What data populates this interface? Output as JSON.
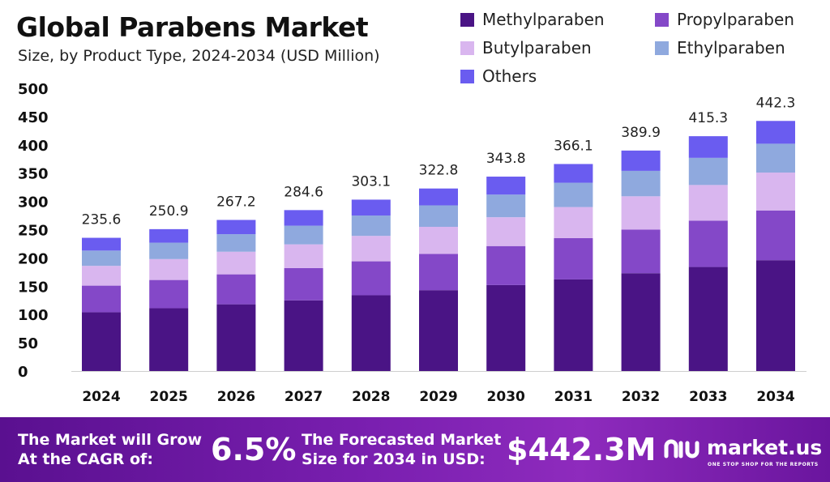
{
  "header": {
    "title": "Global Parabens Market",
    "subtitle": "Size, by Product Type, 2024-2034 (USD Million)"
  },
  "legend": [
    {
      "name": "Methylparaben",
      "color": "#4a1485"
    },
    {
      "name": "Propylparaben",
      "color": "#8448c8"
    },
    {
      "name": "Butylparaben",
      "color": "#d9b6ef"
    },
    {
      "name": "Ethylparaben",
      "color": "#8fa9de"
    },
    {
      "name": "Others",
      "color": "#6a5cf0"
    }
  ],
  "chart_data": {
    "type": "bar",
    "stacked": true,
    "categories": [
      "2024",
      "2025",
      "2026",
      "2027",
      "2028",
      "2029",
      "2030",
      "2031",
      "2032",
      "2033",
      "2034"
    ],
    "totals": [
      235.6,
      250.9,
      267.2,
      284.6,
      303.1,
      322.8,
      343.8,
      366.1,
      389.9,
      415.3,
      442.3
    ],
    "series": [
      {
        "name": "Methylparaben",
        "values": [
          104,
          111,
          118,
          125,
          134,
          143,
          152,
          162,
          173,
          184,
          196
        ]
      },
      {
        "name": "Propylparaben",
        "values": [
          47,
          50,
          53,
          57,
          60,
          64,
          69,
          73,
          77,
          82,
          88
        ]
      },
      {
        "name": "Butylparaben",
        "values": [
          35,
          37,
          40,
          42,
          45,
          48,
          51,
          55,
          59,
          63,
          67
        ]
      },
      {
        "name": "Ethylparaben",
        "values": [
          27,
          29,
          31,
          33,
          36,
          38,
          40,
          43,
          45,
          48,
          51
        ]
      },
      {
        "name": "Others",
        "values": [
          22.6,
          23.9,
          25.2,
          27.6,
          28.1,
          29.8,
          31.8,
          33.1,
          35.9,
          38.3,
          40.3
        ]
      }
    ],
    "ylim": [
      0,
      500
    ],
    "yticks": [
      0,
      50,
      100,
      150,
      200,
      250,
      300,
      350,
      400,
      450,
      500
    ],
    "grid": false,
    "legend_position": "top-right"
  },
  "footer": {
    "cagr_label_line1": "The Market will Grow",
    "cagr_label_line2": "At the CAGR of:",
    "cagr_value": "6.5%",
    "forecast_label_line1": "The Forecasted Market",
    "forecast_label_line2": "Size for 2034 in USD:",
    "forecast_value": "$442.3M",
    "logo_text": "market.us",
    "logo_tagline": "ONE STOP SHOP FOR THE REPORTS"
  }
}
